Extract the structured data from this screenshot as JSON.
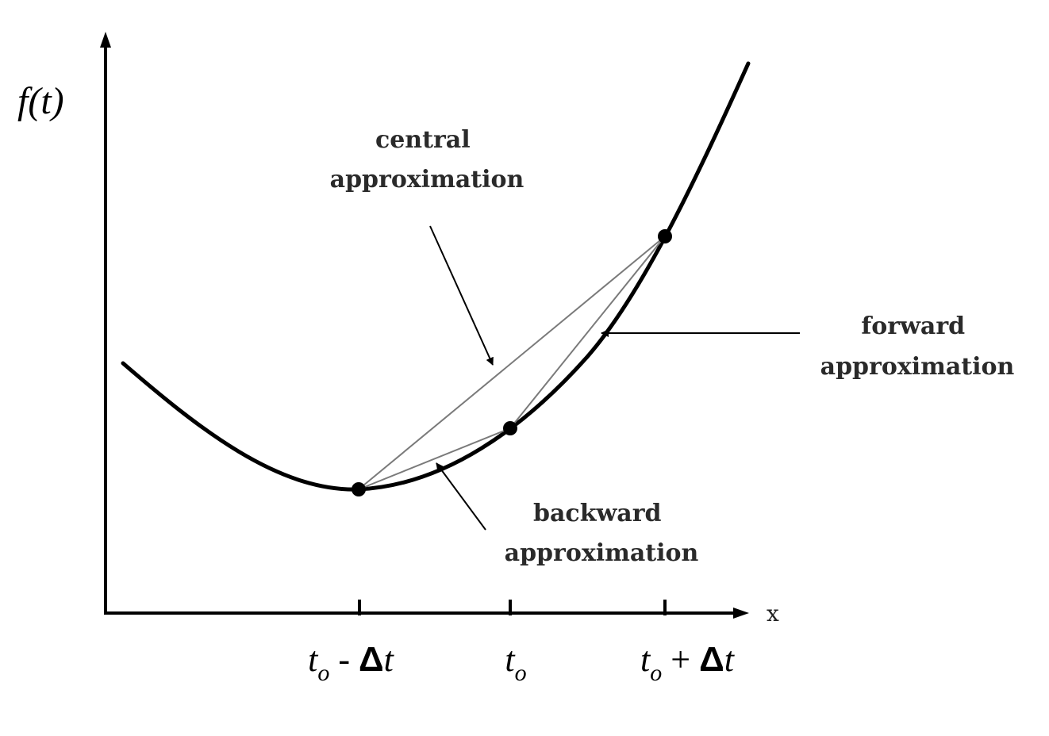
{
  "axes": {
    "y_label": "f(t)",
    "x_label": "x"
  },
  "labels": {
    "central": [
      "central",
      "approximation"
    ],
    "forward": [
      "forward",
      "approximation"
    ],
    "backward": [
      "backward",
      "approximation"
    ]
  },
  "ticks": [
    {
      "t": "t",
      "sub": "o",
      "op": " - ",
      "delta": "Δ",
      "tail": "t"
    },
    {
      "t": "t",
      "sub": "o",
      "op": "",
      "delta": "",
      "tail": ""
    },
    {
      "t": "t",
      "sub": "o",
      "op": " + ",
      "delta": "Δ",
      "tail": "t"
    }
  ],
  "colors": {
    "curve": "#000000",
    "secant": "#7a7a7a",
    "axis": "#000000"
  }
}
